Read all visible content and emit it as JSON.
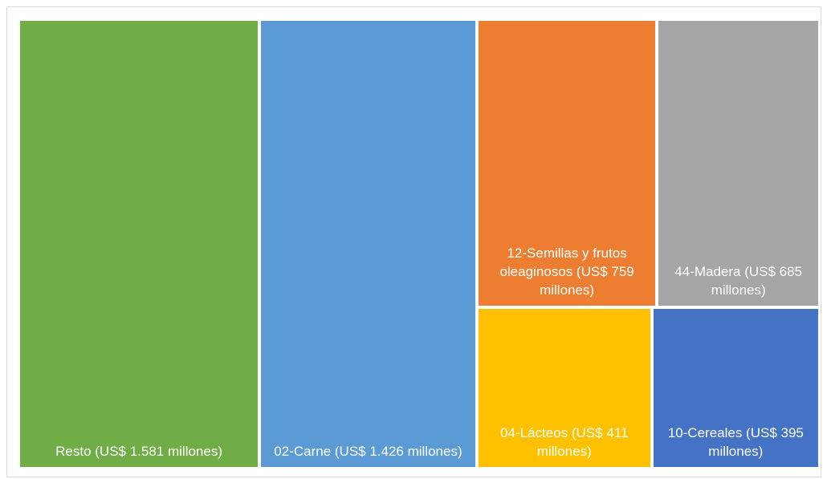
{
  "chart_data": {
    "type": "treemap",
    "value_labels": [
      "Resto  (US$ 1.581 millones)",
      "02-Carne (US$ 1.426 millones)",
      "12-Semillas y frutos oleaginosos (US$ 759 millones)",
      "44-Madera (US$ 685 millones)",
      "04-Lácteos (US$ 411 millones)",
      "10-Cereales (US$ 395 millones)"
    ],
    "values": [
      1581,
      1426,
      759,
      685,
      411,
      395
    ],
    "colors": [
      "#70ad47",
      "#5b9bd5",
      "#ed7d31",
      "#a5a5a5",
      "#ffc000",
      "#4472c4"
    ]
  }
}
